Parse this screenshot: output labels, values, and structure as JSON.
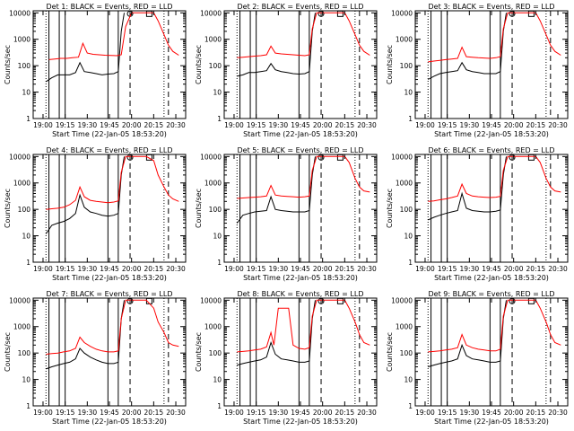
{
  "figure": {
    "xlabel": "Start Time (22-Jan-05 18:53:20)",
    "ylabel": "Counts/sec",
    "x_tick_labels": [
      "19:00",
      "19:15",
      "19:30",
      "19:45",
      "20:00",
      "20:15",
      "20:30"
    ],
    "y_tick_labels": [
      "1",
      "10",
      "100",
      "1000",
      "10000"
    ],
    "colors": {
      "events": "#000000",
      "lld": "#ff0000"
    },
    "panel_titles": [
      "Det  1: BLACK = Events, RED = LLD",
      "Det  2: BLACK = Events, RED = LLD",
      "Det  3: BLACK = Events, RED = LLD",
      "Det  4: BLACK = Events, RED = LLD",
      "Det  5: BLACK = Events, RED = LLD",
      "Det  6: BLACK = Events, RED = LLD",
      "Det  7: BLACK = Events, RED = LLD",
      "Det  8: BLACK = Events, RED = LLD",
      "Det  9: BLACK = Events, RED = LLD"
    ]
  },
  "chart_data": {
    "type": "line",
    "layout": "3x3 grid",
    "xlabel": "Start Time (22-Jan-05 18:53:20)",
    "ylabel": "Counts/sec",
    "y_scale": "log",
    "ylim": [
      1,
      12000
    ],
    "xlim": [
      "18:53:20",
      "20:36:40"
    ],
    "x_ticks": [
      "19:00",
      "19:15",
      "19:30",
      "19:45",
      "20:00",
      "20:15",
      "20:30"
    ],
    "markers": {
      "solid_lines": [
        "19:04",
        "19:11",
        "19:15",
        "19:44",
        "19:51"
      ],
      "dashed_lines": [
        "19:59",
        "20:25"
      ],
      "dotted_lines": [
        "19:02",
        "20:22"
      ]
    },
    "panels": [
      {
        "detector": 1,
        "series": [
          {
            "name": "Events",
            "color": "black",
            "x": [
              "19:02",
              "19:06",
              "19:10",
              "19:14",
              "19:18",
              "19:22",
              "19:25",
              "19:28",
              "19:32",
              "19:36",
              "19:40",
              "19:44",
              "19:48",
              "19:51",
              "19:53",
              "19:55"
            ],
            "y": [
              25,
              35,
              45,
              45,
              45,
              55,
              130,
              60,
              55,
              50,
              45,
              48,
              50,
              60,
              2000,
              10000
            ]
          },
          {
            "name": "LLD",
            "color": "red",
            "x": [
              "19:04",
              "19:08",
              "19:12",
              "19:16",
              "19:20",
              "19:24",
              "19:27",
              "19:30",
              "19:34",
              "19:38",
              "19:42",
              "19:46",
              "19:50",
              "19:53",
              "19:56",
              "20:00",
              "20:10",
              "20:15",
              "20:18",
              "20:22",
              "20:25",
              "20:28",
              "20:32"
            ],
            "y": [
              170,
              180,
              190,
              190,
              200,
              210,
              700,
              300,
              270,
              260,
              250,
              245,
              240,
              260,
              3000,
              10000,
              10000,
              10000,
              5000,
              1500,
              600,
              350,
              250
            ]
          }
        ]
      },
      {
        "detector": 2,
        "series": [
          {
            "name": "Events",
            "color": "black",
            "x": [
              "19:02",
              "19:06",
              "19:10",
              "19:14",
              "19:18",
              "19:22",
              "19:25",
              "19:28",
              "19:32",
              "19:36",
              "19:40",
              "19:44",
              "19:48",
              "19:51",
              "19:53",
              "19:55"
            ],
            "y": [
              40,
              45,
              55,
              55,
              60,
              65,
              120,
              70,
              60,
              55,
              50,
              48,
              50,
              60,
              2000,
              10000
            ]
          },
          {
            "name": "LLD",
            "color": "red",
            "x": [
              "19:02",
              "19:06",
              "19:10",
              "19:14",
              "19:18",
              "19:22",
              "19:25",
              "19:28",
              "19:32",
              "19:36",
              "19:40",
              "19:44",
              "19:48",
              "19:51",
              "19:53",
              "19:56",
              "20:00",
              "20:10",
              "20:15",
              "20:18",
              "20:22",
              "20:25",
              "20:28",
              "20:32"
            ],
            "y": [
              200,
              210,
              220,
              230,
              240,
              260,
              550,
              300,
              280,
              270,
              260,
              250,
              240,
              260,
              2500,
              10000,
              10000,
              10000,
              10000,
              5000,
              1500,
              600,
              350,
              250
            ]
          }
        ]
      },
      {
        "detector": 3,
        "series": [
          {
            "name": "Events",
            "color": "black",
            "x": [
              "19:02",
              "19:06",
              "19:10",
              "19:14",
              "19:18",
              "19:22",
              "19:25",
              "19:28",
              "19:32",
              "19:36",
              "19:40",
              "19:44",
              "19:48",
              "19:51",
              "19:53",
              "19:55"
            ],
            "y": [
              30,
              40,
              50,
              55,
              60,
              65,
              130,
              70,
              60,
              55,
              50,
              50,
              50,
              60,
              2000,
              10000
            ]
          },
          {
            "name": "LLD",
            "color": "red",
            "x": [
              "19:02",
              "19:06",
              "19:10",
              "19:14",
              "19:18",
              "19:22",
              "19:25",
              "19:28",
              "19:32",
              "19:36",
              "19:40",
              "19:44",
              "19:48",
              "19:51",
              "19:53",
              "19:56",
              "20:00",
              "20:10",
              "20:15",
              "20:18",
              "20:22",
              "20:25",
              "20:28",
              "20:32"
            ],
            "y": [
              140,
              150,
              160,
              170,
              180,
              190,
              500,
              220,
              210,
              200,
              195,
              190,
              200,
              220,
              2500,
              10000,
              10000,
              10000,
              10000,
              5000,
              1500,
              600,
              350,
              250
            ]
          }
        ]
      },
      {
        "detector": 4,
        "series": [
          {
            "name": "Events",
            "color": "black",
            "x": [
              "19:02",
              "19:06",
              "19:10",
              "19:14",
              "19:18",
              "19:22",
              "19:25",
              "19:28",
              "19:32",
              "19:36",
              "19:40",
              "19:44",
              "19:48",
              "19:51",
              "19:53",
              "19:55"
            ],
            "y": [
              12,
              25,
              30,
              35,
              45,
              70,
              350,
              120,
              80,
              70,
              60,
              55,
              60,
              70,
              2000,
              10000
            ]
          },
          {
            "name": "LLD",
            "color": "red",
            "x": [
              "19:02",
              "19:06",
              "19:10",
              "19:14",
              "19:18",
              "19:22",
              "19:25",
              "19:28",
              "19:32",
              "19:36",
              "19:40",
              "19:44",
              "19:48",
              "19:51",
              "19:53",
              "19:56",
              "20:00",
              "20:10",
              "20:15",
              "20:18",
              "20:22",
              "20:25",
              "20:28",
              "20:32"
            ],
            "y": [
              100,
              105,
              110,
              120,
              150,
              220,
              700,
              300,
              220,
              200,
              190,
              180,
              190,
              210,
              2500,
              10000,
              10000,
              10000,
              7000,
              2000,
              700,
              350,
              250,
              200
            ]
          }
        ]
      },
      {
        "detector": 5,
        "series": [
          {
            "name": "Events",
            "color": "black",
            "x": [
              "19:02",
              "19:06",
              "19:10",
              "19:14",
              "19:18",
              "19:22",
              "19:25",
              "19:28",
              "19:32",
              "19:36",
              "19:40",
              "19:44",
              "19:48",
              "19:51",
              "19:53",
              "19:55"
            ],
            "y": [
              30,
              60,
              70,
              80,
              85,
              90,
              300,
              100,
              90,
              85,
              80,
              80,
              80,
              90,
              2000,
              10000
            ]
          },
          {
            "name": "LLD",
            "color": "red",
            "x": [
              "19:02",
              "19:06",
              "19:10",
              "19:14",
              "19:18",
              "19:22",
              "19:25",
              "19:28",
              "19:32",
              "19:36",
              "19:40",
              "19:44",
              "19:48",
              "19:51",
              "19:53",
              "19:56",
              "20:00",
              "20:10",
              "20:15",
              "20:18",
              "20:22",
              "20:25",
              "20:28",
              "20:32"
            ],
            "y": [
              260,
              270,
              280,
              290,
              300,
              320,
              800,
              350,
              320,
              310,
              300,
              290,
              300,
              320,
              3000,
              10000,
              10000,
              10000,
              10000,
              6000,
              1500,
              700,
              500,
              450
            ]
          }
        ]
      },
      {
        "detector": 6,
        "series": [
          {
            "name": "Events",
            "color": "black",
            "x": [
              "19:02",
              "19:06",
              "19:10",
              "19:14",
              "19:18",
              "19:22",
              "19:25",
              "19:28",
              "19:32",
              "19:36",
              "19:40",
              "19:44",
              "19:48",
              "19:51",
              "19:53",
              "19:55"
            ],
            "y": [
              40,
              50,
              60,
              70,
              80,
              90,
              400,
              110,
              90,
              85,
              80,
              80,
              85,
              95,
              2000,
              10000
            ]
          },
          {
            "name": "LLD",
            "color": "red",
            "x": [
              "19:02",
              "19:06",
              "19:10",
              "19:14",
              "19:18",
              "19:22",
              "19:25",
              "19:28",
              "19:32",
              "19:36",
              "19:40",
              "19:44",
              "19:48",
              "19:51",
              "19:53",
              "19:56",
              "20:00",
              "20:10",
              "20:15",
              "20:18",
              "20:22",
              "20:25",
              "20:28",
              "20:32"
            ],
            "y": [
              200,
              210,
              230,
              250,
              280,
              320,
              900,
              400,
              320,
              300,
              290,
              280,
              290,
              310,
              3000,
              10000,
              10000,
              10000,
              10000,
              6000,
              1500,
              700,
              500,
              450
            ]
          }
        ]
      },
      {
        "detector": 7,
        "series": [
          {
            "name": "Events",
            "color": "black",
            "x": [
              "19:02",
              "19:06",
              "19:10",
              "19:14",
              "19:18",
              "19:22",
              "19:25",
              "19:28",
              "19:32",
              "19:36",
              "19:40",
              "19:44",
              "19:48",
              "19:51",
              "19:53",
              "19:55"
            ],
            "y": [
              25,
              30,
              35,
              40,
              45,
              60,
              150,
              100,
              70,
              55,
              45,
              40,
              40,
              45,
              2000,
              10000
            ]
          },
          {
            "name": "LLD",
            "color": "red",
            "x": [
              "19:02",
              "19:06",
              "19:10",
              "19:14",
              "19:18",
              "19:22",
              "19:25",
              "19:28",
              "19:32",
              "19:36",
              "19:40",
              "19:44",
              "19:48",
              "19:51",
              "19:53",
              "19:56",
              "20:00",
              "20:10",
              "20:15",
              "20:18",
              "20:22",
              "20:25",
              "20:28",
              "20:32"
            ],
            "y": [
              90,
              95,
              100,
              110,
              120,
              150,
              400,
              250,
              180,
              140,
              120,
              110,
              110,
              120,
              2000,
              10000,
              10000,
              10000,
              5000,
              1500,
              600,
              250,
              200,
              180
            ]
          }
        ]
      },
      {
        "detector": 8,
        "series": [
          {
            "name": "Events",
            "color": "black",
            "x": [
              "19:02",
              "19:06",
              "19:10",
              "19:14",
              "19:18",
              "19:22",
              "19:25",
              "19:28",
              "19:32",
              "19:36",
              "19:40",
              "19:44",
              "19:48",
              "19:51",
              "19:53",
              "19:55"
            ],
            "y": [
              35,
              40,
              45,
              50,
              55,
              70,
              250,
              90,
              60,
              55,
              50,
              45,
              45,
              50,
              2000,
              10000
            ]
          },
          {
            "name": "LLD",
            "color": "red",
            "x": [
              "19:02",
              "19:06",
              "19:10",
              "19:14",
              "19:18",
              "19:22",
              "19:25",
              "19:27",
              "19:30",
              "19:33",
              "19:37",
              "19:40",
              "19:44",
              "19:48",
              "19:51",
              "19:53",
              "19:56",
              "20:00",
              "20:10",
              "20:15",
              "20:18",
              "20:22",
              "20:25",
              "20:28",
              "20:32"
            ],
            "y": [
              110,
              115,
              120,
              130,
              140,
              170,
              600,
              200,
              5000,
              5000,
              5000,
              200,
              150,
              140,
              160,
              2500,
              10000,
              10000,
              10000,
              10000,
              5000,
              1500,
              500,
              250,
              200
            ]
          }
        ]
      },
      {
        "detector": 9,
        "series": [
          {
            "name": "Events",
            "color": "black",
            "x": [
              "19:02",
              "19:06",
              "19:10",
              "19:14",
              "19:18",
              "19:22",
              "19:25",
              "19:28",
              "19:32",
              "19:36",
              "19:40",
              "19:44",
              "19:48",
              "19:51",
              "19:53",
              "19:55"
            ],
            "y": [
              30,
              35,
              40,
              45,
              50,
              60,
              200,
              80,
              60,
              55,
              50,
              45,
              45,
              50,
              2000,
              10000
            ]
          },
          {
            "name": "LLD",
            "color": "red",
            "x": [
              "19:02",
              "19:06",
              "19:10",
              "19:14",
              "19:18",
              "19:22",
              "19:25",
              "19:28",
              "19:32",
              "19:36",
              "19:40",
              "19:44",
              "19:48",
              "19:51",
              "19:53",
              "19:56",
              "20:00",
              "20:10",
              "20:15",
              "20:18",
              "20:22",
              "20:25",
              "20:28",
              "20:32"
            ],
            "y": [
              110,
              115,
              120,
              130,
              140,
              160,
              500,
              200,
              160,
              140,
              130,
              120,
              120,
              140,
              2500,
              10000,
              10000,
              10000,
              10000,
              5000,
              1500,
              500,
              250,
              200
            ]
          }
        ]
      }
    ]
  }
}
